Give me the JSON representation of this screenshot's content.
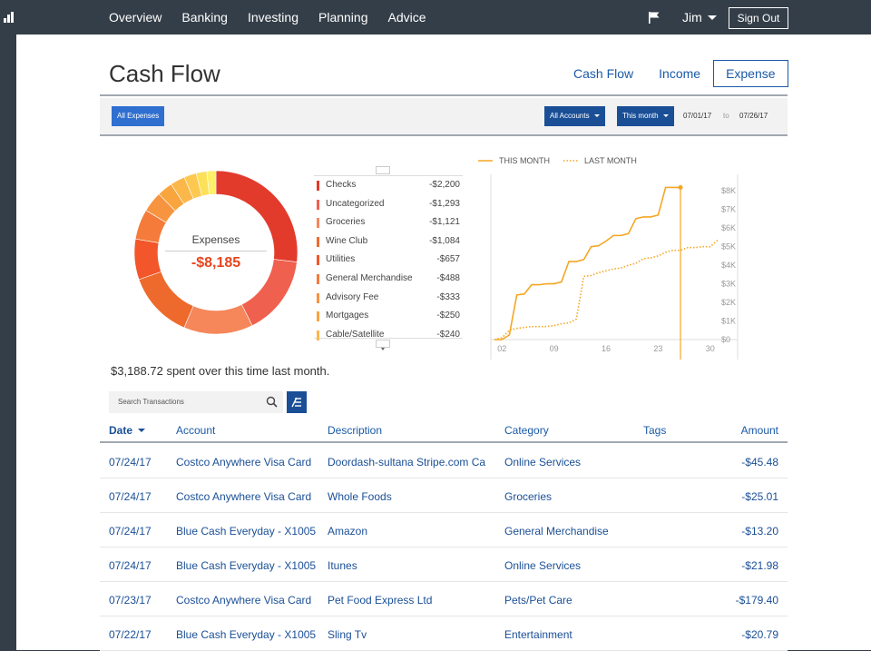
{
  "nav": {
    "items": [
      "Overview",
      "Banking",
      "Investing",
      "Planning",
      "Advice"
    ],
    "user_name": "Jim",
    "sign_out_label": "Sign Out"
  },
  "page": {
    "title": "Cash Flow",
    "tabs": [
      "Cash Flow",
      "Income",
      "Expense"
    ],
    "active_tab": "Expense"
  },
  "filters": {
    "all_expenses_label": "All Expenses",
    "accounts_label": "All Accounts",
    "period_label": "This month",
    "date_from": "07/01/17",
    "date_to_label": "to",
    "date_to": "07/26/17"
  },
  "donut": {
    "label": "Expenses",
    "total": "-$8,185"
  },
  "categories": [
    {
      "name": "Checks",
      "amount": "-$2,200",
      "value": 2200,
      "color": "#e23b2c"
    },
    {
      "name": "Uncategorized",
      "amount": "-$1,293",
      "value": 1293,
      "color": "#f0604f"
    },
    {
      "name": "Groceries",
      "amount": "-$1,121",
      "value": 1121,
      "color": "#f5875b"
    },
    {
      "name": "Wine Club",
      "amount": "-$1,084",
      "value": 1084,
      "color": "#ee6a2c"
    },
    {
      "name": "Utilities",
      "amount": "-$657",
      "value": 657,
      "color": "#f2562a"
    },
    {
      "name": "General Merchandise",
      "amount": "-$488",
      "value": 488,
      "color": "#f47b3a"
    },
    {
      "name": "Advisory Fee",
      "amount": "-$333",
      "value": 333,
      "color": "#f79440"
    },
    {
      "name": "Mortgages",
      "amount": "-$250",
      "value": 250,
      "color": "#f9a53e"
    },
    {
      "name": "Cable/Satellite",
      "amount": "-$240",
      "value": 240,
      "color": "#fbb74a"
    },
    {
      "name": "",
      "amount": "",
      "value": 200,
      "color": "#fcc850"
    },
    {
      "name": "",
      "amount": "",
      "value": 170,
      "color": "#fde05a"
    },
    {
      "name": "",
      "amount": "",
      "value": 149,
      "color": "#fdf06a"
    }
  ],
  "chart_data": {
    "type": "line",
    "legend": [
      "THIS MONTH",
      "LAST MONTH"
    ],
    "x_ticks": [
      "02",
      "09",
      "16",
      "23",
      "30"
    ],
    "y_ticks": [
      "$0",
      "$1K",
      "$2K",
      "$3K",
      "$4K",
      "$5K",
      "$6K",
      "$7K",
      "$8K"
    ],
    "xlim": [
      1,
      31
    ],
    "ylim": [
      0,
      8500
    ],
    "series": [
      {
        "name": "THIS MONTH",
        "style": "solid",
        "color": "#f5a623",
        "x": [
          1,
          2,
          3,
          4,
          5,
          6,
          7,
          8,
          9,
          10,
          11,
          12,
          13,
          14,
          15,
          16,
          17,
          18,
          19,
          20,
          21,
          22,
          23,
          24,
          25,
          26
        ],
        "y": [
          0,
          0,
          250,
          2400,
          2450,
          2950,
          2950,
          3000,
          3000,
          3100,
          4200,
          4200,
          4300,
          5000,
          5050,
          5300,
          5600,
          5600,
          5700,
          6500,
          6600,
          6600,
          6700,
          8185,
          8185,
          8185
        ]
      },
      {
        "name": "LAST MONTH",
        "style": "dotted",
        "color": "#f5a623",
        "x": [
          1,
          2,
          3,
          4,
          5,
          6,
          7,
          8,
          9,
          10,
          11,
          12,
          13,
          14,
          15,
          16,
          17,
          18,
          19,
          20,
          21,
          22,
          23,
          24,
          25,
          26,
          27,
          28,
          29,
          30,
          31
        ],
        "y": [
          0,
          100,
          500,
          600,
          650,
          700,
          700,
          700,
          750,
          850,
          900,
          1100,
          3400,
          3450,
          3600,
          3700,
          3800,
          3850,
          4000,
          4100,
          4350,
          4400,
          4500,
          4700,
          4800,
          4800,
          4950,
          4950,
          5000,
          5000,
          5350
        ]
      }
    ],
    "marker_x": 26
  },
  "summary_text": "$3,188.72 spent over this time last month.",
  "search": {
    "placeholder": "Search Transactions"
  },
  "table": {
    "headers": {
      "date": "Date",
      "account": "Account",
      "description": "Description",
      "category": "Category",
      "tags": "Tags",
      "amount": "Amount"
    },
    "rows": [
      {
        "date": "07/24/17",
        "account": "Costco Anywhere Visa Card",
        "description": "Doordash-sultana Stripe.com Ca",
        "category": "Online Services",
        "tags": "",
        "amount": "-$45.48"
      },
      {
        "date": "07/24/17",
        "account": "Costco Anywhere Visa Card",
        "description": "Whole Foods",
        "category": "Groceries",
        "tags": "",
        "amount": "-$25.01"
      },
      {
        "date": "07/24/17",
        "account": "Blue Cash Everyday - X1005",
        "description": "Amazon",
        "category": "General Merchandise",
        "tags": "",
        "amount": "-$13.20"
      },
      {
        "date": "07/24/17",
        "account": "Blue Cash Everyday - X1005",
        "description": "Itunes",
        "category": "Online Services",
        "tags": "",
        "amount": "-$21.98"
      },
      {
        "date": "07/23/17",
        "account": "Costco Anywhere Visa Card",
        "description": "Pet Food Express Ltd",
        "category": "Pets/Pet Care",
        "tags": "",
        "amount": "-$179.40"
      },
      {
        "date": "07/22/17",
        "account": "Blue Cash Everyday - X1005",
        "description": "Sling Tv",
        "category": "Entertainment",
        "tags": "",
        "amount": "-$20.79"
      }
    ]
  },
  "colors": {
    "topbar": "#343e48",
    "link_blue": "#1a5aa6",
    "button_blue": "#1a4f96",
    "line_orange": "#f5a623",
    "negative_total": "#e8451e"
  },
  "icons": [
    "app-logo-icon",
    "flag-icon",
    "chevron-down-icon",
    "search-icon",
    "filter-list-icon"
  ]
}
